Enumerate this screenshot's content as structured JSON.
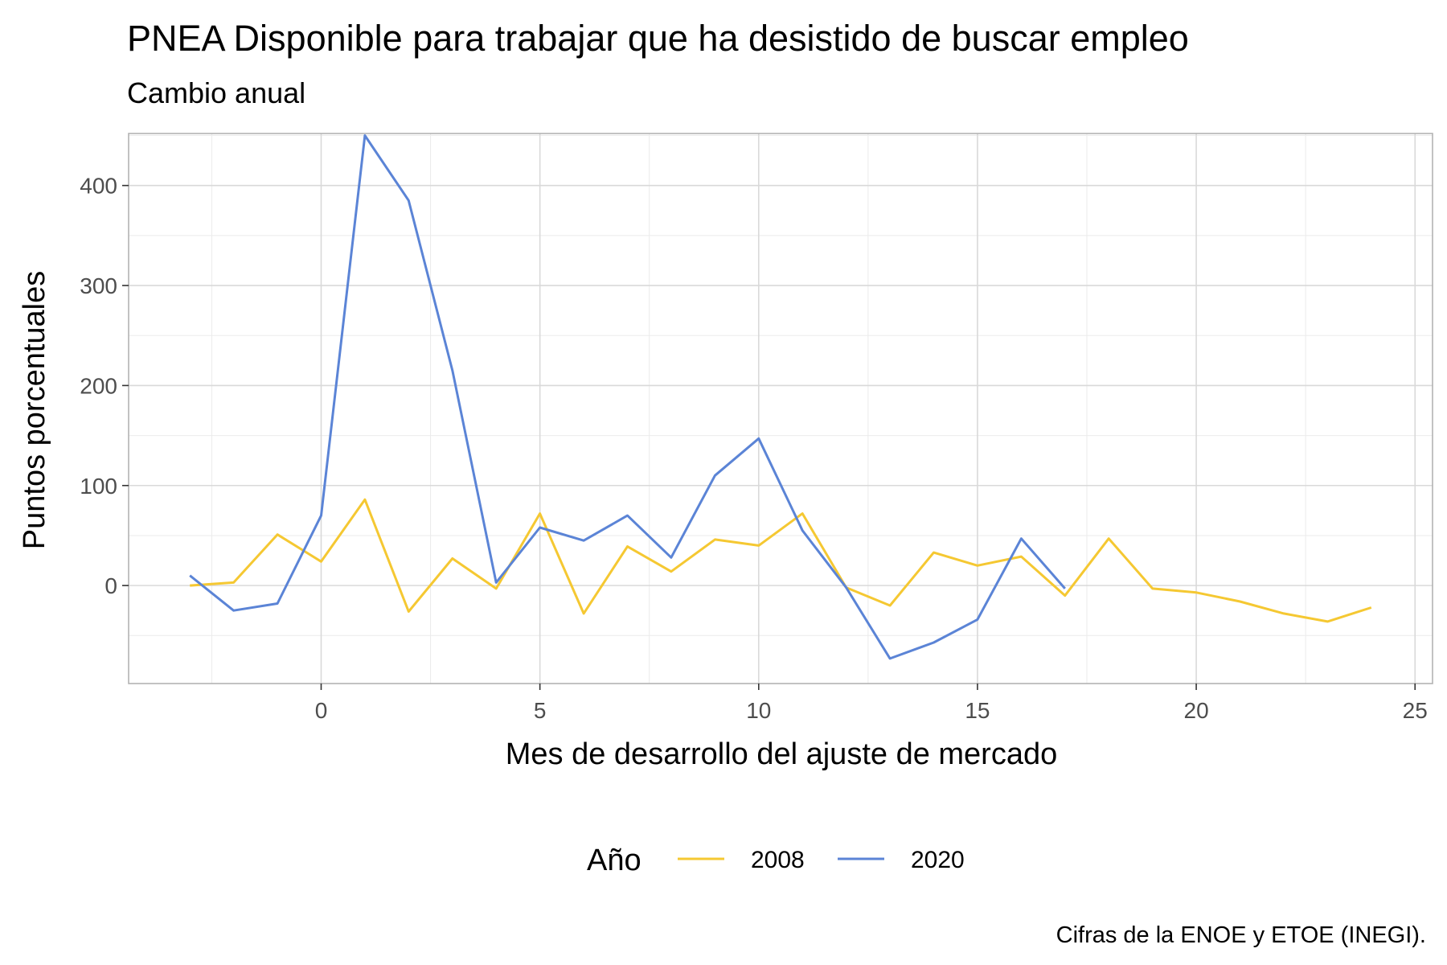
{
  "chart_data": {
    "type": "line",
    "title": "PNEA Disponible para trabajar que ha desistido de buscar empleo",
    "subtitle": "Cambio anual",
    "xlabel": "Mes de desarrollo del ajuste de mercado",
    "ylabel": "Puntos porcentuales",
    "caption": "Cifras de la ENOE y ETOE (INEGI).",
    "xlim": [
      -4.4,
      25.4
    ],
    "ylim": [
      -98,
      452
    ],
    "x_ticks": [
      0,
      5,
      10,
      15,
      20,
      25
    ],
    "y_ticks": [
      0,
      100,
      200,
      300,
      400
    ],
    "x_minor": [
      -2.5,
      2.5,
      7.5,
      12.5,
      17.5,
      22.5
    ],
    "y_minor": [
      -50,
      50,
      150,
      250,
      350,
      450
    ],
    "grid": true,
    "legend": {
      "title": "Año",
      "position": "bottom"
    },
    "series": [
      {
        "name": "2008",
        "color": "#F5C832",
        "x": [
          -3,
          -2,
          -1,
          0,
          1,
          2,
          3,
          4,
          5,
          6,
          7,
          8,
          9,
          10,
          11,
          12,
          13,
          14,
          15,
          16,
          17,
          18,
          19,
          20,
          21,
          22,
          23,
          24
        ],
        "y": [
          0,
          3,
          51,
          24,
          86,
          -26,
          27,
          -3,
          72,
          -28,
          39,
          14,
          46,
          40,
          72,
          -2,
          -20,
          33,
          20,
          29,
          -10,
          47,
          -3,
          -7,
          -16,
          -28,
          -36,
          -22
        ]
      },
      {
        "name": "2020",
        "color": "#5B84D6",
        "x": [
          -3,
          -2,
          -1,
          0,
          1,
          2,
          3,
          4,
          5,
          6,
          7,
          8,
          9,
          10,
          11,
          12,
          13,
          14,
          15,
          16,
          17
        ],
        "y": [
          10,
          -25,
          -18,
          70,
          450,
          385,
          215,
          3,
          58,
          45,
          70,
          28,
          110,
          147,
          55,
          -2,
          -73,
          -57,
          -34,
          47,
          -3
        ]
      }
    ]
  }
}
